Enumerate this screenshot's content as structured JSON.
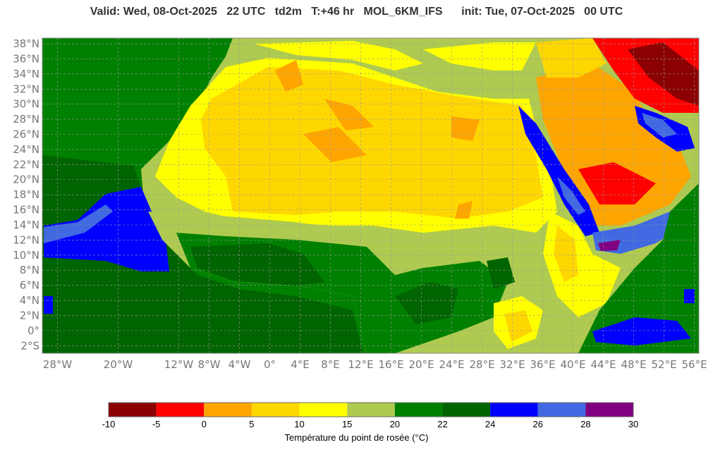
{
  "title": "Valid: Wed, 08-Oct-2025   22 UTC   td2m   T:+46 hr   MOL_6KM_IFS      init: Tue, 07-Oct-2025   00 UTC",
  "map": {
    "lat_range": [
      -3,
      38.75
    ],
    "lon_range": [
      -30,
      56.6
    ],
    "lat_ticks": [
      38,
      36,
      34,
      32,
      30,
      28,
      26,
      24,
      22,
      20,
      18,
      16,
      14,
      12,
      10,
      8,
      6,
      4,
      2,
      0,
      -2
    ],
    "lat_labels": [
      "38°N",
      "36°N",
      "34°N",
      "32°N",
      "30°N",
      "28°N",
      "26°N",
      "24°N",
      "22°N",
      "20°N",
      "18°N",
      "16°N",
      "14°N",
      "12°N",
      "10°N",
      "8°N",
      "6°N",
      "4°N",
      "2°N",
      "0°",
      "2°S"
    ],
    "lon_ticks": [
      -28,
      -20,
      -12,
      -8,
      -4,
      0,
      4,
      8,
      12,
      16,
      20,
      24,
      28,
      32,
      36,
      40,
      44,
      48,
      52,
      56
    ],
    "lon_labels": [
      "28°W",
      "20°W",
      "12°W",
      "8°W",
      "4°W",
      "0°",
      "4°E",
      "8°E",
      "12°E",
      "16°E",
      "20°E",
      "24°E",
      "28°E",
      "32°E",
      "36°E",
      "40°E",
      "44°E",
      "48°E",
      "52°E",
      "56°E"
    ],
    "grid": true
  },
  "colorbar": {
    "label": "Température du point de rosée (°C)",
    "bounds": [
      -10,
      -5,
      0,
      5,
      10,
      15,
      20,
      22,
      24,
      26,
      28,
      30
    ],
    "tick_labels": [
      "-10",
      "-5",
      "0",
      "5",
      "10",
      "15",
      "20",
      "22",
      "24",
      "26",
      "28",
      "30"
    ],
    "colors": [
      "#8b0000",
      "#ff0000",
      "#ffa500",
      "#ffd700",
      "#ffff00",
      "#afca50",
      "#008000",
      "#006400",
      "#0000ff",
      "#4169e1",
      "#800080"
    ]
  }
}
